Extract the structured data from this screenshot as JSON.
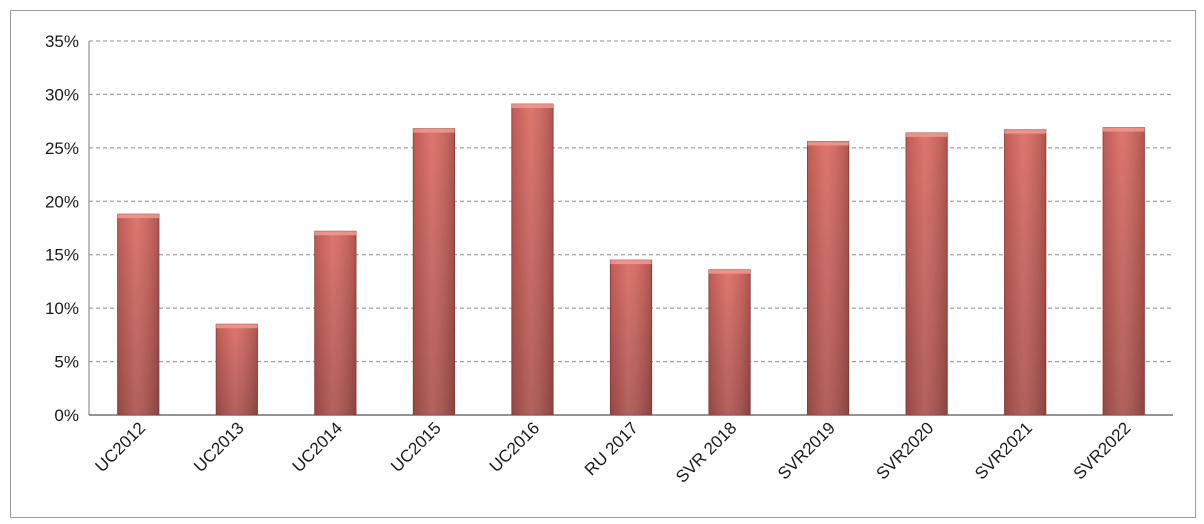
{
  "chart_data": {
    "type": "bar",
    "categories": [
      "UC2012",
      "UC2013",
      "UC2014",
      "UC2015",
      "UC2016",
      "RU 2017",
      "SVR 2018",
      "SVR2019",
      "SVR2020",
      "SVR2021",
      "SVR2022"
    ],
    "values": [
      18.8,
      8.5,
      17.2,
      26.8,
      29.1,
      14.5,
      13.6,
      25.6,
      26.4,
      26.7,
      26.9
    ],
    "yticks": [
      "0%",
      "5%",
      "10%",
      "15%",
      "20%",
      "25%",
      "30%",
      "35%"
    ],
    "ylim": [
      0,
      35
    ],
    "grid": true,
    "bar_color": "#d9675f",
    "bar_color_dark": "#a9504c",
    "title": "",
    "xlabel": "",
    "ylabel": ""
  }
}
